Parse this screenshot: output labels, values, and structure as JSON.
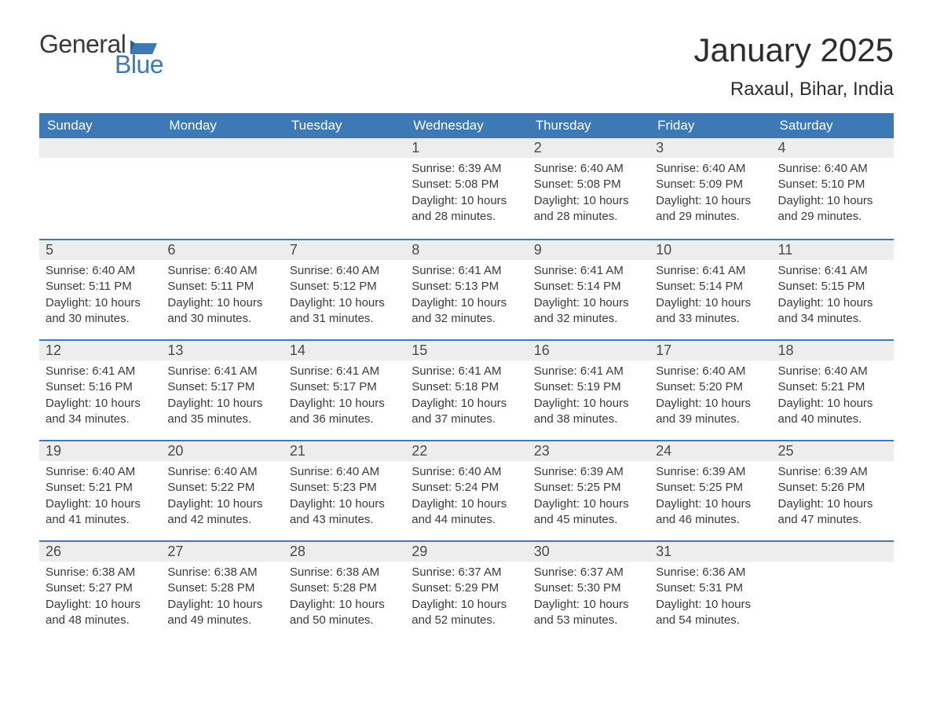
{
  "logo": {
    "word1": "General",
    "word2": "Blue"
  },
  "title": "January 2025",
  "location": "Raxaul, Bihar, India",
  "colors": {
    "header_bg": "#3c79b5",
    "header_text": "#ffffff",
    "daynum_bg": "#ededed",
    "rule": "#3c79b5",
    "body_text": "#3a3a3a"
  },
  "day_labels": [
    "Sunday",
    "Monday",
    "Tuesday",
    "Wednesday",
    "Thursday",
    "Friday",
    "Saturday"
  ],
  "weeks": [
    [
      null,
      null,
      null,
      {
        "n": "1",
        "sunrise": "6:39 AM",
        "sunset": "5:08 PM",
        "daylight": "10 hours and 28 minutes."
      },
      {
        "n": "2",
        "sunrise": "6:40 AM",
        "sunset": "5:08 PM",
        "daylight": "10 hours and 28 minutes."
      },
      {
        "n": "3",
        "sunrise": "6:40 AM",
        "sunset": "5:09 PM",
        "daylight": "10 hours and 29 minutes."
      },
      {
        "n": "4",
        "sunrise": "6:40 AM",
        "sunset": "5:10 PM",
        "daylight": "10 hours and 29 minutes."
      }
    ],
    [
      {
        "n": "5",
        "sunrise": "6:40 AM",
        "sunset": "5:11 PM",
        "daylight": "10 hours and 30 minutes."
      },
      {
        "n": "6",
        "sunrise": "6:40 AM",
        "sunset": "5:11 PM",
        "daylight": "10 hours and 30 minutes."
      },
      {
        "n": "7",
        "sunrise": "6:40 AM",
        "sunset": "5:12 PM",
        "daylight": "10 hours and 31 minutes."
      },
      {
        "n": "8",
        "sunrise": "6:41 AM",
        "sunset": "5:13 PM",
        "daylight": "10 hours and 32 minutes."
      },
      {
        "n": "9",
        "sunrise": "6:41 AM",
        "sunset": "5:14 PM",
        "daylight": "10 hours and 32 minutes."
      },
      {
        "n": "10",
        "sunrise": "6:41 AM",
        "sunset": "5:14 PM",
        "daylight": "10 hours and 33 minutes."
      },
      {
        "n": "11",
        "sunrise": "6:41 AM",
        "sunset": "5:15 PM",
        "daylight": "10 hours and 34 minutes."
      }
    ],
    [
      {
        "n": "12",
        "sunrise": "6:41 AM",
        "sunset": "5:16 PM",
        "daylight": "10 hours and 34 minutes."
      },
      {
        "n": "13",
        "sunrise": "6:41 AM",
        "sunset": "5:17 PM",
        "daylight": "10 hours and 35 minutes."
      },
      {
        "n": "14",
        "sunrise": "6:41 AM",
        "sunset": "5:17 PM",
        "daylight": "10 hours and 36 minutes."
      },
      {
        "n": "15",
        "sunrise": "6:41 AM",
        "sunset": "5:18 PM",
        "daylight": "10 hours and 37 minutes."
      },
      {
        "n": "16",
        "sunrise": "6:41 AM",
        "sunset": "5:19 PM",
        "daylight": "10 hours and 38 minutes."
      },
      {
        "n": "17",
        "sunrise": "6:40 AM",
        "sunset": "5:20 PM",
        "daylight": "10 hours and 39 minutes."
      },
      {
        "n": "18",
        "sunrise": "6:40 AM",
        "sunset": "5:21 PM",
        "daylight": "10 hours and 40 minutes."
      }
    ],
    [
      {
        "n": "19",
        "sunrise": "6:40 AM",
        "sunset": "5:21 PM",
        "daylight": "10 hours and 41 minutes."
      },
      {
        "n": "20",
        "sunrise": "6:40 AM",
        "sunset": "5:22 PM",
        "daylight": "10 hours and 42 minutes."
      },
      {
        "n": "21",
        "sunrise": "6:40 AM",
        "sunset": "5:23 PM",
        "daylight": "10 hours and 43 minutes."
      },
      {
        "n": "22",
        "sunrise": "6:40 AM",
        "sunset": "5:24 PM",
        "daylight": "10 hours and 44 minutes."
      },
      {
        "n": "23",
        "sunrise": "6:39 AM",
        "sunset": "5:25 PM",
        "daylight": "10 hours and 45 minutes."
      },
      {
        "n": "24",
        "sunrise": "6:39 AM",
        "sunset": "5:25 PM",
        "daylight": "10 hours and 46 minutes."
      },
      {
        "n": "25",
        "sunrise": "6:39 AM",
        "sunset": "5:26 PM",
        "daylight": "10 hours and 47 minutes."
      }
    ],
    [
      {
        "n": "26",
        "sunrise": "6:38 AM",
        "sunset": "5:27 PM",
        "daylight": "10 hours and 48 minutes."
      },
      {
        "n": "27",
        "sunrise": "6:38 AM",
        "sunset": "5:28 PM",
        "daylight": "10 hours and 49 minutes."
      },
      {
        "n": "28",
        "sunrise": "6:38 AM",
        "sunset": "5:28 PM",
        "daylight": "10 hours and 50 minutes."
      },
      {
        "n": "29",
        "sunrise": "6:37 AM",
        "sunset": "5:29 PM",
        "daylight": "10 hours and 52 minutes."
      },
      {
        "n": "30",
        "sunrise": "6:37 AM",
        "sunset": "5:30 PM",
        "daylight": "10 hours and 53 minutes."
      },
      {
        "n": "31",
        "sunrise": "6:36 AM",
        "sunset": "5:31 PM",
        "daylight": "10 hours and 54 minutes."
      },
      null
    ]
  ],
  "labels": {
    "sunrise_prefix": "Sunrise: ",
    "sunset_prefix": "Sunset: ",
    "daylight_prefix": "Daylight: "
  }
}
